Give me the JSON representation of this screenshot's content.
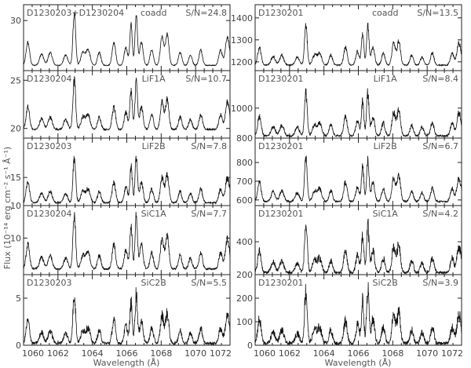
{
  "chart_data": {
    "type": "line",
    "xlabel": "Wavelength (Å)",
    "ylabel": "Flux (10⁻¹⁴ erg cm⁻² s⁻¹ Å⁻¹)",
    "xlim": [
      1060,
      1072
    ],
    "x_ticks": [
      1060,
      1062,
      1064,
      1066,
      1068,
      1070,
      1072
    ],
    "peaks": [
      {
        "x": 1060.25,
        "w": 0.1,
        "a": 0.45
      },
      {
        "x": 1061.05,
        "w": 0.12,
        "a": 0.22
      },
      {
        "x": 1061.55,
        "w": 0.12,
        "a": 0.25
      },
      {
        "x": 1062.45,
        "w": 0.12,
        "a": 0.2
      },
      {
        "x": 1062.95,
        "w": 0.08,
        "a": 1.0
      },
      {
        "x": 1063.45,
        "w": 0.12,
        "a": 0.25
      },
      {
        "x": 1063.75,
        "w": 0.12,
        "a": 0.3
      },
      {
        "x": 1064.4,
        "w": 0.1,
        "a": 0.25
      },
      {
        "x": 1065.25,
        "w": 0.1,
        "a": 0.45
      },
      {
        "x": 1065.95,
        "w": 0.1,
        "a": 0.35
      },
      {
        "x": 1066.25,
        "w": 0.07,
        "a": 0.8
      },
      {
        "x": 1066.55,
        "w": 0.07,
        "a": 1.0
      },
      {
        "x": 1066.85,
        "w": 0.1,
        "a": 0.45
      },
      {
        "x": 1067.45,
        "w": 0.1,
        "a": 0.3
      },
      {
        "x": 1068.05,
        "w": 0.1,
        "a": 0.55
      },
      {
        "x": 1068.35,
        "w": 0.1,
        "a": 0.6
      },
      {
        "x": 1069.1,
        "w": 0.1,
        "a": 0.25
      },
      {
        "x": 1069.7,
        "w": 0.1,
        "a": 0.2
      },
      {
        "x": 1070.3,
        "w": 0.1,
        "a": 0.3
      },
      {
        "x": 1071.45,
        "w": 0.1,
        "a": 0.3
      },
      {
        "x": 1071.85,
        "w": 0.12,
        "a": 0.55
      }
    ],
    "columns": [
      {
        "panels": [
          {
            "dataset": "D1230203+D1230204",
            "channel": "coadd",
            "snr": "S/N=24.8",
            "ylim": [
              20.5,
              33
            ],
            "y_ticks": [
              30
            ],
            "baseline": 21.5,
            "peak_flux": 31.2,
            "noise": 0.25
          },
          {
            "dataset": "D1230204",
            "channel": "LiF1A",
            "snr": "S/N=10.7",
            "ylim": [
              19,
              26
            ],
            "y_ticks": [
              20,
              25
            ],
            "baseline": 19.9,
            "peak_flux": 25.0,
            "noise": 0.25
          },
          {
            "dataset": "D1230203",
            "channel": "LiF2B",
            "snr": "S/N=7.8",
            "ylim": [
              10,
              22
            ],
            "y_ticks": [
              10,
              15
            ],
            "baseline": 10.5,
            "peak_flux": 18.5,
            "noise": 0.45
          },
          {
            "dataset": "D1230204",
            "channel": "SiC1A",
            "snr": "S/N=7.7",
            "ylim": [
              5.5,
              14
            ],
            "y_ticks": [
              10
            ],
            "baseline": 6.2,
            "peak_flux": 12.8,
            "noise": 0.35
          },
          {
            "dataset": "D1230203",
            "channel": "SiC2B",
            "snr": "S/N=5.5",
            "ylim": [
              0,
              7.5
            ],
            "y_ticks": [
              0,
              5
            ],
            "baseline": 0.2,
            "peak_flux": 5.5,
            "noise": 0.45
          }
        ]
      },
      {
        "panels": [
          {
            "dataset": "D1230201",
            "channel": "coadd",
            "snr": "S/N=13.5",
            "ylim": [
              1160,
              1460
            ],
            "y_ticks": [
              1200,
              1300,
              1400
            ],
            "baseline": 1185,
            "peak_flux": 1365,
            "noise": 8
          },
          {
            "dataset": "D1230201",
            "channel": "LiF1A",
            "snr": "S/N=8.4",
            "ylim": [
              800,
              1250
            ],
            "y_ticks": [
              800,
              1000
            ],
            "baseline": 815,
            "peak_flux": 1100,
            "noise": 18
          },
          {
            "dataset": "D1230201",
            "channel": "LiF2B",
            "snr": "S/N=6.7",
            "ylim": [
              570,
              930
            ],
            "y_ticks": [
              600,
              700,
              800
            ],
            "baseline": 592,
            "peak_flux": 820,
            "noise": 14
          },
          {
            "dataset": "D1230201",
            "channel": "SiC1A",
            "snr": "S/N=4.2",
            "ylim": [
              200,
              620
            ],
            "y_ticks": [
              200,
              400
            ],
            "baseline": 212,
            "peak_flux": 500,
            "noise": 25
          },
          {
            "dataset": "D1230201",
            "channel": "SiC2B",
            "snr": "S/N=3.9",
            "ylim": [
              0,
              300
            ],
            "y_ticks": [
              0,
              100,
              200
            ],
            "baseline": 8,
            "peak_flux": 230,
            "noise": 22
          }
        ]
      }
    ]
  }
}
